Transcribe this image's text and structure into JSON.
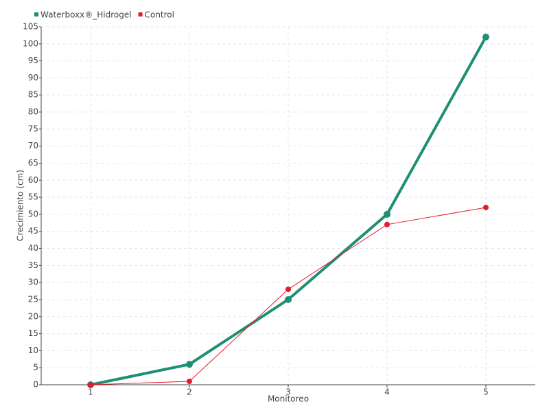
{
  "chart_data": {
    "type": "line",
    "categories": [
      "1",
      "2",
      "3",
      "4",
      "5"
    ],
    "series": [
      {
        "name": "Waterboxx®_Hidrogel",
        "color": "#1f8f73",
        "values": [
          0,
          6,
          25,
          50,
          102
        ]
      },
      {
        "name": "Control",
        "color": "#e8192c",
        "values": [
          0,
          1,
          28,
          47,
          52
        ]
      }
    ],
    "ylim": [
      0,
      105
    ],
    "yticks": [
      0,
      5,
      10,
      15,
      20,
      25,
      30,
      35,
      40,
      45,
      50,
      55,
      60,
      65,
      70,
      75,
      80,
      85,
      90,
      95,
      100,
      105
    ],
    "y_label": "Crecimiento (cm)",
    "x_label": "Monitoreo",
    "grid": true,
    "legend": "top-left"
  }
}
